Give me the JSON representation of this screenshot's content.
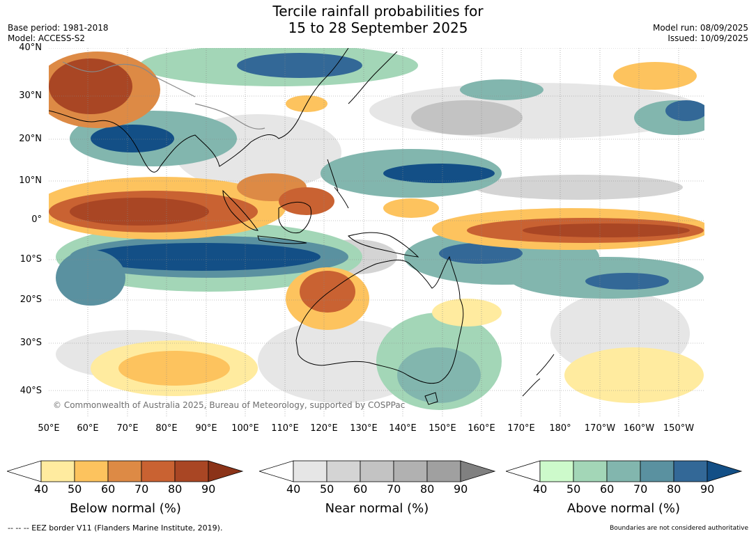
{
  "title": {
    "line1": "Tercile rainfall probabilities for",
    "line2": "15 to 28 September 2025"
  },
  "header": {
    "base_period": "Base period: 1981-2018",
    "model": "Model: ACCESS-S2",
    "model_run": "Model run: 08/09/2025",
    "issued": "Issued: 10/09/2025"
  },
  "map": {
    "copyright": "© Commonwealth of Australia 2025, Bureau of Meteorology, supported by COSPPac",
    "lat_labels": [
      "40°N",
      "30°N",
      "20°N",
      "10°N",
      "0°",
      "10°S",
      "20°S",
      "30°S",
      "40°S"
    ],
    "lon_labels": [
      "50°E",
      "60°E",
      "70°E",
      "80°E",
      "90°E",
      "100°E",
      "110°E",
      "120°E",
      "130°E",
      "140°E",
      "150°E",
      "160°E",
      "170°E",
      "180°",
      "170°W",
      "160°W",
      "150°W"
    ]
  },
  "legends": [
    {
      "label": "Below normal (%)",
      "ticks": [
        "40",
        "50",
        "60",
        "70",
        "80",
        "90"
      ],
      "colors": [
        "#ffffff",
        "#ffeb9f",
        "#fdc35e",
        "#dd8a45",
        "#c96232",
        "#a94624",
        "#8b3318"
      ]
    },
    {
      "label": "Near normal (%)",
      "ticks": [
        "40",
        "50",
        "60",
        "70",
        "80",
        "90"
      ],
      "colors": [
        "#ffffff",
        "#e6e6e6",
        "#d4d4d4",
        "#c3c3c3",
        "#b1b1b1",
        "#a0a0a0",
        "#808080"
      ]
    },
    {
      "label": "Above normal (%)",
      "ticks": [
        "40",
        "50",
        "60",
        "70",
        "80",
        "90"
      ],
      "colors": [
        "#ffffff",
        "#cdfacb",
        "#a3d6b7",
        "#82b6ae",
        "#5a91a0",
        "#336897",
        "#134f86"
      ]
    }
  ],
  "footer": {
    "eez": "--  --  -- EEZ border V11 (Flanders Marine Institute, 2019).",
    "disclaimer": "Boundaries are not considered authoritative"
  }
}
